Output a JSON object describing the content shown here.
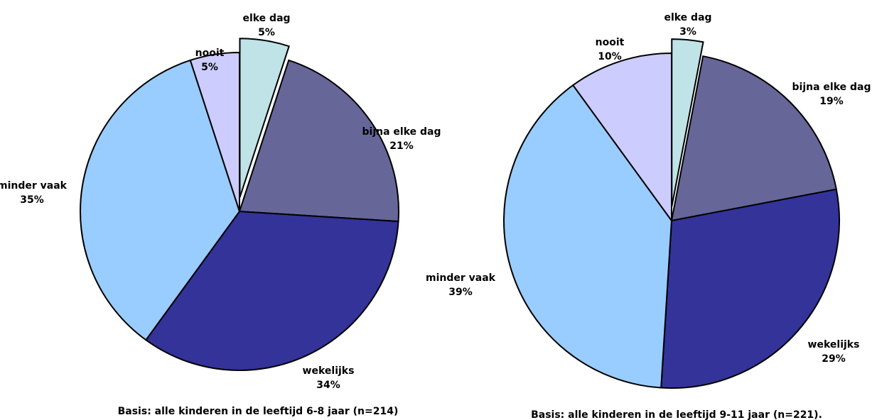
{
  "chart_data": [
    {
      "type": "pie",
      "caption": "Basis: alle kinderen in de leeftijd 6-8 jaar (n=214)",
      "slices": [
        {
          "label": "elke dag",
          "value": 5,
          "value_label": "5%",
          "color": "#bfe3e6",
          "exploded": true
        },
        {
          "label": "bijna elke dag",
          "value": 21,
          "value_label": "21%",
          "color": "#666699"
        },
        {
          "label": "wekelijks",
          "value": 34,
          "value_label": "34%",
          "color": "#333399"
        },
        {
          "label": "minder vaak",
          "value": 35,
          "value_label": "35%",
          "color": "#99ccff"
        },
        {
          "label": "nooit",
          "value": 5,
          "value_label": "5%",
          "color": "#ccccff"
        }
      ]
    },
    {
      "type": "pie",
      "caption": "Basis: alle kinderen in de leeftijd 9-11 jaar (n=221).",
      "slices": [
        {
          "label": "elke dag",
          "value": 3,
          "value_label": "3%",
          "color": "#bfe3e6",
          "exploded": true
        },
        {
          "label": "bijna elke dag",
          "value": 19,
          "value_label": "19%",
          "color": "#666699"
        },
        {
          "label": "wekelijks",
          "value": 29,
          "value_label": "29%",
          "color": "#333399"
        },
        {
          "label": "minder vaak",
          "value": 39,
          "value_label": "39%",
          "color": "#99ccff"
        },
        {
          "label": "nooit",
          "value": 10,
          "value_label": "10%",
          "color": "#ccccff"
        }
      ]
    }
  ]
}
